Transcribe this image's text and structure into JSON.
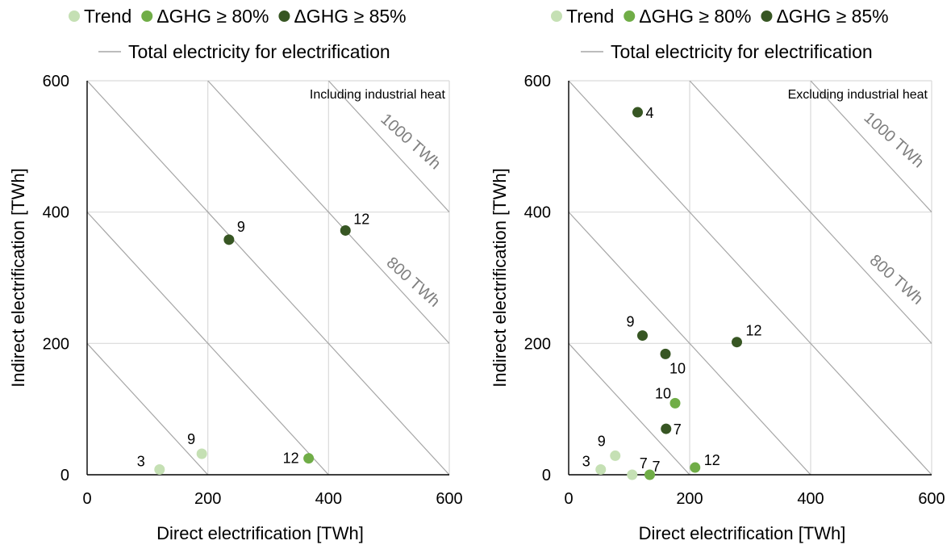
{
  "legend": {
    "series": [
      {
        "name": "Trend",
        "color": "#c5e0b4"
      },
      {
        "name": "ΔGHG ≥ 80%",
        "color": "#70ad47"
      },
      {
        "name": "ΔGHG ≥ 85%",
        "color": "#375623"
      }
    ],
    "line_label": "Total electricity for electrification",
    "line_color": "#a6a6a6"
  },
  "chart_data": [
    {
      "type": "scatter",
      "annotation": "Including industrial heat",
      "xlabel": "Direct electrification [TWh]",
      "ylabel": "Indirect electrification [TWh]",
      "xlim": [
        0,
        600
      ],
      "ylim": [
        0,
        600
      ],
      "xticks": [
        "0",
        "200",
        "400",
        "600"
      ],
      "yticks": [
        "0",
        "200",
        "400",
        "600"
      ],
      "grid": true,
      "isolines": [
        200,
        400,
        600,
        800,
        1000
      ],
      "isoline_labels": [
        "800 TWh",
        "1000 TWh"
      ],
      "series": [
        {
          "name": "Trend",
          "points": [
            {
              "x": 120,
              "y": 8,
              "label": "3"
            },
            {
              "x": 190,
              "y": 32,
              "label": "9"
            }
          ]
        },
        {
          "name": "ΔGHG ≥ 80%",
          "points": [
            {
              "x": 367,
              "y": 25,
              "label": "12"
            }
          ]
        },
        {
          "name": "ΔGHG ≥ 85%",
          "points": [
            {
              "x": 235,
              "y": 358,
              "label": "9"
            },
            {
              "x": 428,
              "y": 372,
              "label": "12"
            }
          ]
        }
      ]
    },
    {
      "type": "scatter",
      "annotation": "Excluding industrial heat",
      "xlabel": "Direct electrification [TWh]",
      "ylabel": "Indirect electrification [TWh]",
      "xlim": [
        0,
        600
      ],
      "ylim": [
        0,
        600
      ],
      "xticks": [
        "0",
        "200",
        "400",
        "600"
      ],
      "yticks": [
        "0",
        "200",
        "400",
        "600"
      ],
      "grid": true,
      "isolines": [
        200,
        400,
        600,
        800,
        1000
      ],
      "isoline_labels": [
        "800 TWh",
        "1000 TWh"
      ],
      "series": [
        {
          "name": "Trend",
          "points": [
            {
              "x": 53,
              "y": 8,
              "label": "3"
            },
            {
              "x": 77,
              "y": 29,
              "label": "9"
            },
            {
              "x": 105,
              "y": 0,
              "label": "7"
            }
          ]
        },
        {
          "name": "ΔGHG ≥ 80%",
          "points": [
            {
              "x": 134,
              "y": 0,
              "label": "7"
            },
            {
              "x": 176,
              "y": 109,
              "label": "10"
            },
            {
              "x": 209,
              "y": 11,
              "label": "12"
            }
          ]
        },
        {
          "name": "ΔGHG ≥ 85%",
          "points": [
            {
              "x": 114,
              "y": 552,
              "label": "4"
            },
            {
              "x": 122,
              "y": 212,
              "label": "9"
            },
            {
              "x": 160,
              "y": 184,
              "label": "10"
            },
            {
              "x": 161,
              "y": 70,
              "label": "7"
            },
            {
              "x": 278,
              "y": 202,
              "label": "12"
            }
          ]
        }
      ]
    }
  ]
}
